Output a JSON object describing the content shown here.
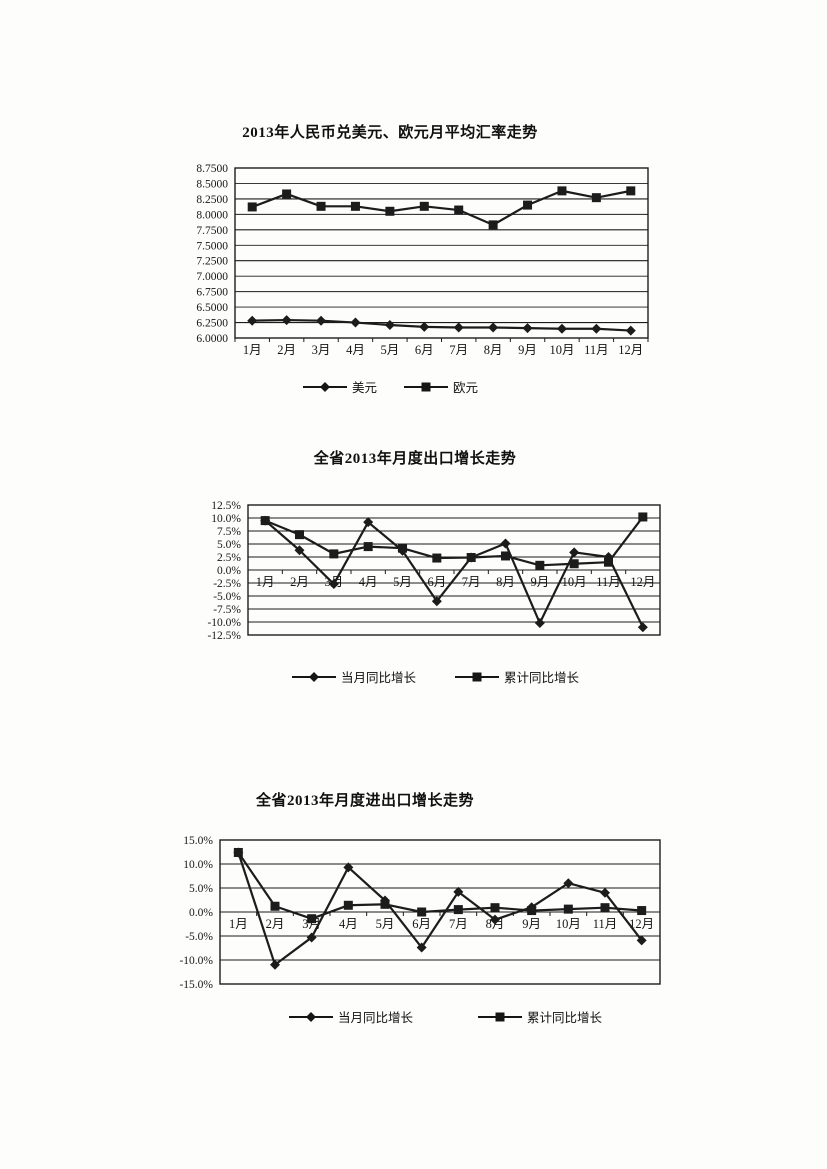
{
  "page": {
    "background": "#fdfdfb",
    "ink": "#1a1a1a"
  },
  "chart_data": [
    {
      "type": "line",
      "title": "2013年人民币兑美元、欧元月平均汇率走势",
      "categories": [
        "1月",
        "2月",
        "3月",
        "4月",
        "5月",
        "6月",
        "7月",
        "8月",
        "9月",
        "10月",
        "11月",
        "12月"
      ],
      "y_axis": {
        "min": 6.0,
        "max": 8.75,
        "step": 0.25
      },
      "y_tick_labels": [
        "8.7500",
        "8.5000",
        "8.2500",
        "8.0000",
        "7.7500",
        "7.5000",
        "7.2500",
        "7.0000",
        "6.7500",
        "6.5000",
        "6.2500",
        "6.0000"
      ],
      "grid": true,
      "legend_position": "bottom",
      "labels_at_zero": false,
      "series": [
        {
          "name": "美元",
          "marker": "diamond",
          "values": [
            6.28,
            6.29,
            6.28,
            6.25,
            6.21,
            6.18,
            6.17,
            6.17,
            6.16,
            6.15,
            6.15,
            6.12
          ]
        },
        {
          "name": "欧元",
          "marker": "square",
          "values": [
            8.12,
            8.33,
            8.13,
            8.13,
            8.05,
            8.13,
            8.07,
            7.83,
            8.15,
            8.38,
            8.27,
            8.38
          ]
        }
      ]
    },
    {
      "type": "line",
      "title": "全省2013年月度出口增长走势",
      "categories": [
        "1月",
        "2月",
        "3月",
        "4月",
        "5月",
        "6月",
        "7月",
        "8月",
        "9月",
        "10月",
        "11月",
        "12月"
      ],
      "y_axis": {
        "min": -12.5,
        "max": 12.5,
        "step": 2.5
      },
      "y_tick_labels": [
        "12.5%",
        "10.0%",
        "7.5%",
        "5.0%",
        "2.5%",
        "0.0%",
        "-2.5%",
        "-5.0%",
        "-7.5%",
        "-10.0%",
        "-12.5%"
      ],
      "grid": true,
      "legend_position": "bottom",
      "labels_at_zero": true,
      "series": [
        {
          "name": "当月同比增长",
          "marker": "diamond",
          "values": [
            9.5,
            3.8,
            -2.7,
            9.2,
            3.7,
            -6.0,
            2.4,
            5.1,
            -10.2,
            3.4,
            2.5,
            -11.0
          ]
        },
        {
          "name": "累计同比增长",
          "marker": "square",
          "values": [
            9.5,
            6.8,
            3.1,
            4.5,
            4.2,
            2.3,
            2.4,
            2.7,
            0.9,
            1.2,
            1.5,
            10.2
          ]
        }
      ]
    },
    {
      "type": "line",
      "title": "全省2013年月度进出口增长走势",
      "categories": [
        "1月",
        "2月",
        "3月",
        "4月",
        "5月",
        "6月",
        "7月",
        "8月",
        "9月",
        "10月",
        "11月",
        "12月"
      ],
      "y_axis": {
        "min": -15.0,
        "max": 15.0,
        "step": 5.0
      },
      "y_tick_labels": [
        "15.0%",
        "10.0%",
        "5.0%",
        "0.0%",
        "-5.0%",
        "-10.0%",
        "-15.0%"
      ],
      "grid": true,
      "legend_position": "bottom",
      "labels_at_zero": true,
      "series": [
        {
          "name": "当月同比增长",
          "marker": "diamond",
          "values": [
            12.4,
            -11.0,
            -5.3,
            9.3,
            2.4,
            -7.4,
            4.2,
            -1.6,
            1.0,
            6.0,
            4.0,
            -5.9
          ]
        },
        {
          "name": "累计同比增长",
          "marker": "square",
          "values": [
            12.4,
            1.2,
            -1.4,
            1.4,
            1.6,
            0.0,
            0.5,
            0.9,
            0.3,
            0.6,
            0.9,
            0.3
          ]
        }
      ]
    }
  ]
}
